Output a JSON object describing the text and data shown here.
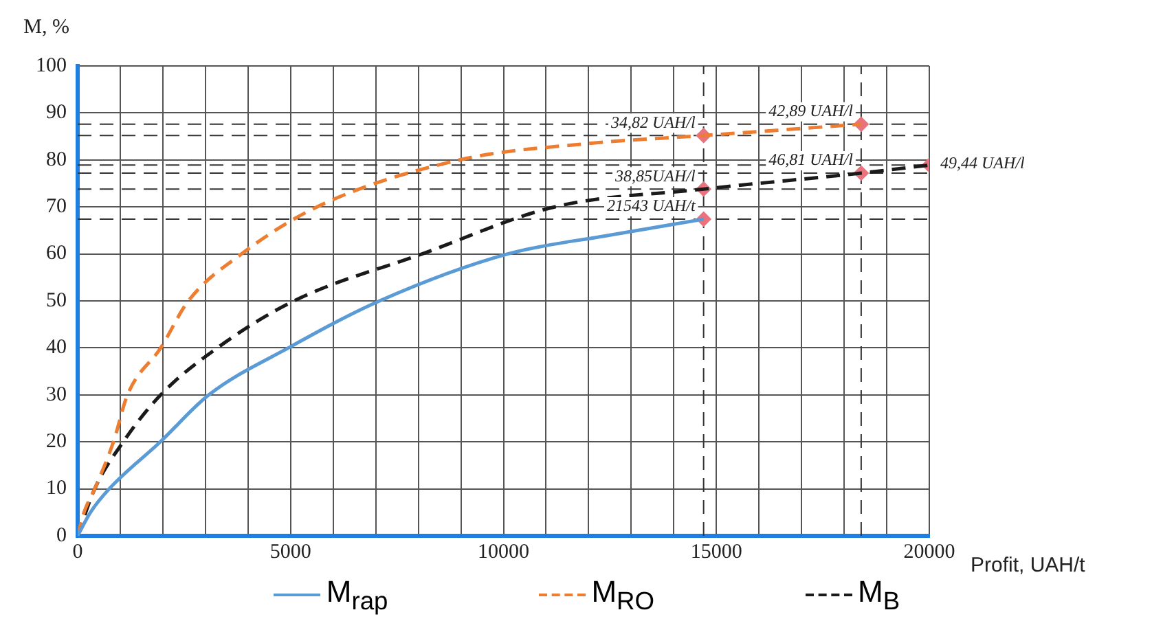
{
  "chart_data": {
    "type": "line",
    "xlabel": "Profit, UAH/t",
    "ylabel": "M, %",
    "xlim": [
      0,
      20000
    ],
    "ylim": [
      0,
      100
    ],
    "xticks": [
      0,
      {
        "value": 1000,
        "label": null
      },
      {
        "value": 2000,
        "label": null
      },
      {
        "value": 3000,
        "label": null
      },
      {
        "value": 4000,
        "label": null
      },
      5000,
      {
        "value": 6000,
        "label": null
      },
      {
        "value": 7000,
        "label": null
      },
      {
        "value": 8000,
        "label": null
      },
      {
        "value": 9000,
        "label": null
      },
      10000,
      {
        "value": 11000,
        "label": null
      },
      {
        "value": 12000,
        "label": null
      },
      {
        "value": 13000,
        "label": null
      },
      {
        "value": 14000,
        "label": null
      },
      15000,
      {
        "value": 16000,
        "label": null
      },
      {
        "value": 17000,
        "label": null
      },
      {
        "value": 18000,
        "label": null
      },
      {
        "value": 19000,
        "label": null
      },
      20000
    ],
    "yticks": [
      0,
      10,
      20,
      30,
      40,
      50,
      60,
      70,
      80,
      90,
      100
    ],
    "grid": true,
    "legend": "bottom",
    "series": [
      {
        "name": "M$_{rap}$",
        "color": "#5b9bd5",
        "line_style": "solid",
        "marker": "none",
        "x": [
          0,
          300,
          740,
          1940,
          3080,
          4950,
          7090,
          10100,
          12500,
          14700
        ],
        "values": [
          0,
          5,
          10,
          20,
          30,
          40,
          50,
          60,
          64,
          67.4
        ]
      },
      {
        "name": "M$_{RO}$",
        "color": "#ed7d31",
        "line_style": "dashed",
        "marker": "none",
        "x": [
          0,
          150,
          400,
          840,
          1170,
          1950,
          2600,
          3850,
          5620,
          8970,
          12000,
          14700,
          18400
        ],
        "values": [
          0,
          5,
          10,
          20,
          30,
          40,
          50,
          60,
          70,
          80,
          83.5,
          85.2,
          87.6
        ]
      },
      {
        "name": "M$_{B}$",
        "color": "#1a1a1a",
        "line_style": "dashed",
        "marker": "none",
        "x": [
          0,
          400,
          1070,
          1950,
          3280,
          5080,
          8090,
          11200,
          14700,
          18400,
          20000
        ],
        "values": [
          0,
          10,
          20,
          30,
          40,
          50,
          60,
          70,
          73.8,
          77.2,
          78.9
        ]
      },
      {
        "type": "scatter",
        "color": "#e8737f",
        "marker": "diamond",
        "x": [
          14700,
          18400,
          14700,
          14700,
          18400,
          20000
        ],
        "values": [
          85.2,
          87.6,
          73.8,
          67.4,
          77.2,
          78.9
        ]
      }
    ],
    "ref_lines": [
      {
        "axis": "y",
        "value": 87.6,
        "color": "#333333",
        "line_style": "dashed"
      },
      {
        "axis": "y",
        "value": 85.2,
        "color": "#333333",
        "line_style": "dashed"
      },
      {
        "axis": "y",
        "value": 78.9,
        "color": "#333333",
        "line_style": "dashed"
      },
      {
        "axis": "y",
        "value": 77.2,
        "color": "#333333",
        "line_style": "dashed"
      },
      {
        "axis": "y",
        "value": 73.8,
        "color": "#333333",
        "line_style": "dashed"
      },
      {
        "axis": "y",
        "value": 67.4,
        "color": "#333333",
        "line_style": "dashed"
      },
      {
        "axis": "x",
        "value": 14700,
        "color": "#333333",
        "line_style": "dashed"
      },
      {
        "axis": "x",
        "value": 18400,
        "color": "#333333",
        "line_style": "dashed"
      }
    ],
    "annotations": [
      {
        "text": "34,82 UAH/l",
        "x": 14700,
        "y": 85.2
      },
      {
        "text": "42,89 UAH/l",
        "x": 18400,
        "y": 87.6
      },
      {
        "text": "38,85UAH/l",
        "x": 14700,
        "y": 73.8
      },
      {
        "text": "21543 UAH/t",
        "x": 14700,
        "y": 67.4
      },
      {
        "text": "46,81 UAH/l",
        "x": 18400,
        "y": 77.2
      },
      {
        "text": "49,44 UAH/l",
        "x": 20000,
        "y": 78.9
      }
    ]
  }
}
